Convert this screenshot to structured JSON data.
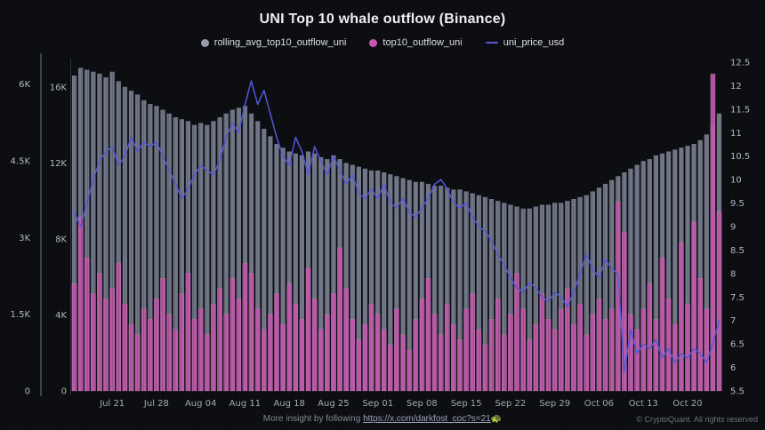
{
  "title": "UNI Top 10 whale outflow (Binance)",
  "legend": [
    {
      "label": "rolling_avg_top10_outflow_uni",
      "color": "#9aa0b0",
      "marker": "dot"
    },
    {
      "label": "top10_outflow_uni",
      "color": "#cd58b4",
      "marker": "dot"
    },
    {
      "label": "uni_price_usd",
      "color": "#5459dd",
      "marker": "line"
    }
  ],
  "footer": {
    "more_insight_prefix": "More insight by following ",
    "link": "https://x.com/darkfost_coc?s=21",
    "emoji": "🐢",
    "copyright": "© CryptoQuant. All rights reserved"
  },
  "chart_data": {
    "type": "mixed",
    "title": "UNI Top 10 whale outflow (Binance)",
    "legend_position": "top",
    "grid": false,
    "axes": {
      "left_outer": {
        "series": "top10_outflow_uni",
        "tick_values": [
          0,
          1500,
          3000,
          4500,
          6000
        ],
        "tick_labels": [
          "0",
          "1.5K",
          "3K",
          "4.5K",
          "6K"
        ],
        "max": 6430
      },
      "left_inner": {
        "series": "rolling_avg_top10_outflow_uni",
        "tick_values": [
          0,
          4000,
          8000,
          12000,
          16000
        ],
        "tick_labels": [
          "0",
          "4K",
          "8K",
          "12K",
          "16K"
        ],
        "max": 17300
      },
      "right": {
        "series": "uni_price_usd",
        "min": 5.5,
        "max": 12.5,
        "tick_values": [
          5.5,
          6,
          6.5,
          7,
          7.5,
          8,
          8.5,
          9,
          9.5,
          10,
          10.5,
          11,
          11.5,
          12,
          12.5
        ]
      }
    },
    "x_ticks": [
      {
        "label": "Jul 21",
        "i": 6
      },
      {
        "label": "Jul 28",
        "i": 13
      },
      {
        "label": "Aug 04",
        "i": 20
      },
      {
        "label": "Aug 11",
        "i": 27
      },
      {
        "label": "Aug 18",
        "i": 34
      },
      {
        "label": "Aug 25",
        "i": 41
      },
      {
        "label": "Sep 01",
        "i": 48
      },
      {
        "label": "Sep 08",
        "i": 55
      },
      {
        "label": "Sep 15",
        "i": 62
      },
      {
        "label": "Sep 22",
        "i": 69
      },
      {
        "label": "Sep 29",
        "i": 76
      },
      {
        "label": "Oct 06",
        "i": 83
      },
      {
        "label": "Oct 13",
        "i": 90
      },
      {
        "label": "Oct 20",
        "i": 97
      }
    ],
    "series": [
      {
        "name": "rolling_avg_top10_outflow_uni",
        "type": "bar",
        "axis": "left_inner",
        "color": "#868da0",
        "values": [
          16600,
          17000,
          16900,
          16800,
          16700,
          16500,
          16800,
          16300,
          16000,
          15800,
          15600,
          15300,
          15100,
          15000,
          14800,
          14600,
          14400,
          14300,
          14200,
          14000,
          14100,
          14000,
          14200,
          14400,
          14600,
          14800,
          14900,
          15000,
          14600,
          14200,
          13800,
          13400,
          13000,
          12800,
          12600,
          12500,
          12400,
          12600,
          12500,
          12300,
          12200,
          12400,
          12200,
          12000,
          11900,
          11800,
          11700,
          11600,
          11600,
          11500,
          11400,
          11300,
          11200,
          11100,
          11000,
          11000,
          10900,
          10800,
          10800,
          10700,
          10600,
          10600,
          10500,
          10400,
          10300,
          10200,
          10100,
          10000,
          9900,
          9800,
          9700,
          9600,
          9600,
          9700,
          9800,
          9800,
          9900,
          9900,
          10000,
          10100,
          10200,
          10300,
          10500,
          10700,
          10900,
          11100,
          11300,
          11500,
          11700,
          11900,
          12100,
          12200,
          12400,
          12500,
          12600,
          12700,
          12800,
          12900,
          13000,
          13200,
          13500,
          14000,
          14600
        ]
      },
      {
        "name": "top10_outflow_uni",
        "type": "bar",
        "axis": "left_outer",
        "color": "#c058ab",
        "values": [
          2100,
          3400,
          2600,
          1900,
          2300,
          1800,
          2000,
          2500,
          1700,
          1300,
          1100,
          1600,
          1400,
          1800,
          2200,
          1500,
          1200,
          1900,
          2300,
          1400,
          1600,
          1100,
          1700,
          2000,
          1500,
          2200,
          1800,
          2500,
          2300,
          1600,
          1200,
          1500,
          1900,
          1300,
          2100,
          1700,
          1400,
          2400,
          1800,
          1200,
          1500,
          1900,
          2800,
          2000,
          1400,
          1000,
          1300,
          1700,
          1500,
          1200,
          900,
          1600,
          1100,
          800,
          1400,
          1800,
          2200,
          1500,
          1100,
          1700,
          1300,
          1000,
          1600,
          1900,
          1200,
          900,
          1400,
          1800,
          1100,
          1500,
          2300,
          1600,
          1000,
          1300,
          1900,
          1400,
          1200,
          1600,
          2000,
          1300,
          1700,
          1100,
          1500,
          1800,
          1400,
          1600,
          3700,
          3100,
          1500,
          1200,
          1600,
          2100,
          1400,
          2600,
          1800,
          1300,
          2900,
          1700,
          3300,
          2200,
          1600,
          6200,
          3500
        ]
      },
      {
        "name": "uni_price_usd",
        "type": "line",
        "axis": "right",
        "color": "#5459dd",
        "values": [
          9.3,
          9.0,
          9.5,
          10.0,
          10.4,
          10.6,
          10.7,
          10.3,
          10.5,
          10.9,
          10.6,
          10.8,
          10.7,
          10.8,
          10.5,
          10.2,
          9.9,
          9.6,
          9.8,
          10.1,
          10.3,
          10.2,
          10.1,
          10.4,
          10.9,
          11.2,
          11.0,
          11.6,
          12.1,
          11.6,
          11.9,
          11.4,
          10.9,
          10.5,
          10.3,
          10.9,
          10.6,
          10.1,
          10.7,
          10.4,
          10.1,
          10.5,
          10.2,
          9.9,
          10.1,
          9.7,
          9.6,
          9.8,
          9.6,
          9.9,
          9.5,
          9.4,
          9.6,
          9.3,
          9.2,
          9.4,
          9.6,
          9.9,
          10.0,
          9.8,
          9.5,
          9.4,
          9.5,
          9.2,
          9.0,
          8.9,
          8.7,
          8.4,
          8.2,
          7.9,
          7.7,
          7.6,
          7.8,
          7.7,
          7.5,
          7.4,
          7.6,
          7.5,
          7.3,
          7.6,
          8.0,
          8.4,
          8.1,
          7.9,
          8.3,
          8.1,
          8.0,
          5.9,
          6.8,
          6.3,
          6.5,
          6.4,
          6.6,
          6.2,
          6.4,
          6.1,
          6.3,
          6.2,
          6.4,
          6.3,
          6.1,
          6.5,
          7.0
        ]
      }
    ]
  }
}
